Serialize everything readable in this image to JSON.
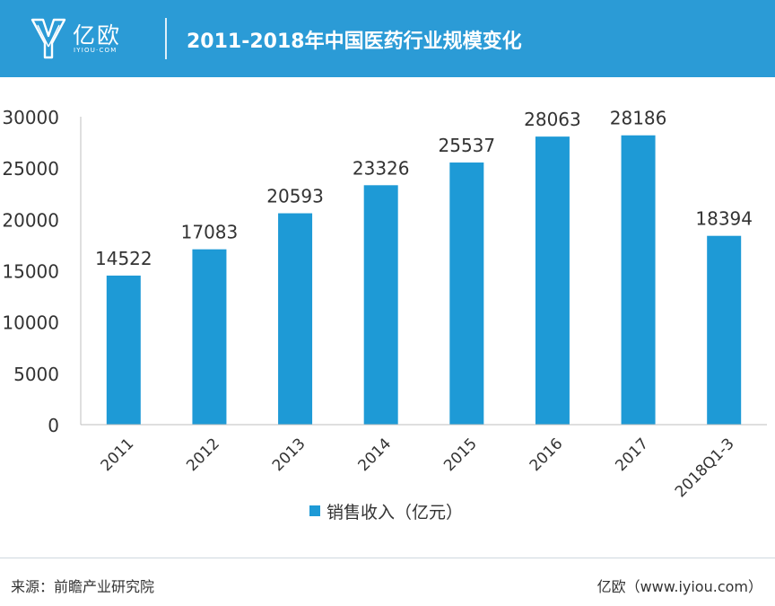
{
  "header": {
    "logo_text": "亿欧",
    "logo_sub": "IYIOU·COM",
    "title": "2011-2018年中国医药行业规模变化"
  },
  "colors": {
    "header_bg": "#2b9bd6",
    "bar": "#1e9ad6",
    "axis": "#bfbfbf",
    "text": "#333333"
  },
  "chart_data": {
    "type": "bar",
    "categories": [
      "2011",
      "2012",
      "2013",
      "2014",
      "2015",
      "2016",
      "2017",
      "2018Q1-3"
    ],
    "series": [
      {
        "name": "销售收入（亿元）",
        "values": [
          14522,
          17083,
          20593,
          23326,
          25537,
          28063,
          28186,
          18394
        ]
      }
    ],
    "ylim": [
      0,
      30000
    ],
    "yticks": [
      "0",
      "5000",
      "10000",
      "15000",
      "20000",
      "25000",
      "30000"
    ],
    "grid": false,
    "legend_position": "bottom",
    "data_labels": true
  },
  "footer": {
    "source": "来源：前瞻产业研究院",
    "credit": "亿欧（www.iyiou.com）"
  }
}
